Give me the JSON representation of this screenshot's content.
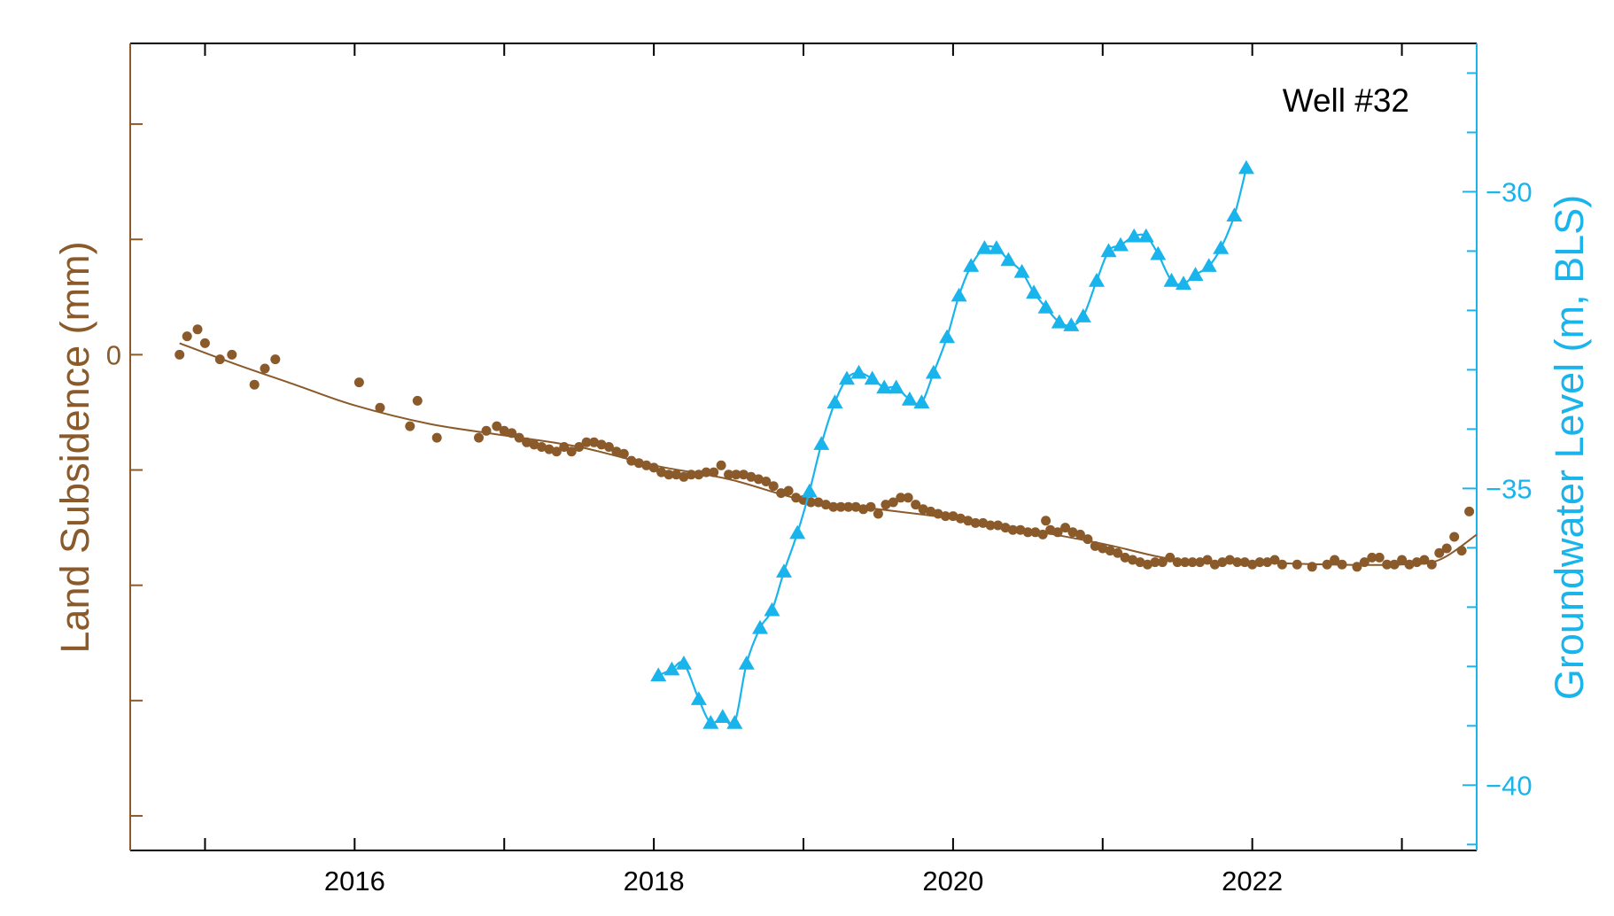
{
  "colors": {
    "subsidence": "#8a5a2b",
    "groundwater": "#19b4ec",
    "frame": "#000000"
  },
  "chart_data": {
    "type": "line",
    "annotation": "Well #32",
    "xlabel": "",
    "x_ticks": [
      "2016",
      "2018",
      "2020",
      "2022"
    ],
    "xlim": [
      2014.5,
      2023.5
    ],
    "grid": false,
    "legend": "none",
    "left_axis": {
      "label": "Land Subsidence (mm)",
      "ylim": [
        -21.5,
        13.5
      ],
      "tick_values": [
        -20,
        -15,
        -10,
        -5,
        0,
        5,
        10
      ],
      "tick_labels": [
        {
          "value": 0,
          "text": "0"
        }
      ]
    },
    "right_axis": {
      "label": "Groundwater Level (m, BLS)",
      "ylim": [
        -41.1,
        -27.5
      ],
      "major_tick_values": [
        -40,
        -35,
        -30
      ],
      "tick_labels": [
        {
          "value": -30,
          "text": "−30"
        },
        {
          "value": -35,
          "text": "−35"
        },
        {
          "value": -40,
          "text": "−40"
        }
      ],
      "minor_step": 1
    },
    "series": [
      {
        "axis": "left",
        "marker": "circle",
        "points": [
          [
            2014.83,
            0.0
          ],
          [
            2014.88,
            0.8
          ],
          [
            2014.95,
            1.1
          ],
          [
            2015.0,
            0.5
          ],
          [
            2015.1,
            -0.2
          ],
          [
            2015.18,
            0.0
          ],
          [
            2015.33,
            -1.3
          ],
          [
            2015.4,
            -0.6
          ],
          [
            2015.47,
            -0.2
          ],
          [
            2016.03,
            -1.2
          ],
          [
            2016.17,
            -2.3
          ],
          [
            2016.37,
            -3.1
          ],
          [
            2016.42,
            -2.0
          ],
          [
            2016.55,
            -3.6
          ],
          [
            2016.83,
            -3.6
          ],
          [
            2016.88,
            -3.3
          ],
          [
            2016.95,
            -3.1
          ],
          [
            2017.0,
            -3.3
          ],
          [
            2017.05,
            -3.4
          ],
          [
            2017.1,
            -3.6
          ],
          [
            2017.15,
            -3.8
          ],
          [
            2017.2,
            -3.9
          ],
          [
            2017.25,
            -4.0
          ],
          [
            2017.3,
            -4.1
          ],
          [
            2017.35,
            -4.2
          ],
          [
            2017.4,
            -4.0
          ],
          [
            2017.45,
            -4.2
          ],
          [
            2017.5,
            -4.0
          ],
          [
            2017.55,
            -3.8
          ],
          [
            2017.6,
            -3.8
          ],
          [
            2017.65,
            -3.9
          ],
          [
            2017.7,
            -4.0
          ],
          [
            2017.75,
            -4.2
          ],
          [
            2017.8,
            -4.3
          ],
          [
            2017.85,
            -4.6
          ],
          [
            2017.9,
            -4.7
          ],
          [
            2017.95,
            -4.8
          ],
          [
            2018.0,
            -4.9
          ],
          [
            2018.05,
            -5.1
          ],
          [
            2018.1,
            -5.2
          ],
          [
            2018.15,
            -5.2
          ],
          [
            2018.2,
            -5.3
          ],
          [
            2018.25,
            -5.2
          ],
          [
            2018.3,
            -5.2
          ],
          [
            2018.35,
            -5.1
          ],
          [
            2018.4,
            -5.1
          ],
          [
            2018.45,
            -4.8
          ],
          [
            2018.5,
            -5.2
          ],
          [
            2018.55,
            -5.2
          ],
          [
            2018.6,
            -5.2
          ],
          [
            2018.65,
            -5.3
          ],
          [
            2018.7,
            -5.4
          ],
          [
            2018.75,
            -5.5
          ],
          [
            2018.8,
            -5.7
          ],
          [
            2018.85,
            -6.0
          ],
          [
            2018.9,
            -5.9
          ],
          [
            2018.95,
            -6.2
          ],
          [
            2019.0,
            -6.3
          ],
          [
            2019.05,
            -6.4
          ],
          [
            2019.1,
            -6.4
          ],
          [
            2019.15,
            -6.5
          ],
          [
            2019.2,
            -6.6
          ],
          [
            2019.25,
            -6.6
          ],
          [
            2019.3,
            -6.6
          ],
          [
            2019.35,
            -6.6
          ],
          [
            2019.4,
            -6.7
          ],
          [
            2019.45,
            -6.6
          ],
          [
            2019.5,
            -6.9
          ],
          [
            2019.55,
            -6.5
          ],
          [
            2019.6,
            -6.4
          ],
          [
            2019.65,
            -6.2
          ],
          [
            2019.7,
            -6.2
          ],
          [
            2019.75,
            -6.5
          ],
          [
            2019.8,
            -6.7
          ],
          [
            2019.85,
            -6.8
          ],
          [
            2019.9,
            -6.9
          ],
          [
            2019.95,
            -7.0
          ],
          [
            2020.0,
            -7.0
          ],
          [
            2020.05,
            -7.1
          ],
          [
            2020.1,
            -7.2
          ],
          [
            2020.15,
            -7.3
          ],
          [
            2020.2,
            -7.3
          ],
          [
            2020.25,
            -7.4
          ],
          [
            2020.3,
            -7.4
          ],
          [
            2020.35,
            -7.5
          ],
          [
            2020.4,
            -7.6
          ],
          [
            2020.45,
            -7.6
          ],
          [
            2020.5,
            -7.7
          ],
          [
            2020.55,
            -7.7
          ],
          [
            2020.6,
            -7.8
          ],
          [
            2020.62,
            -7.2
          ],
          [
            2020.65,
            -7.6
          ],
          [
            2020.7,
            -7.7
          ],
          [
            2020.75,
            -7.5
          ],
          [
            2020.8,
            -7.7
          ],
          [
            2020.85,
            -7.8
          ],
          [
            2020.9,
            -8.0
          ],
          [
            2020.95,
            -8.3
          ],
          [
            2021.0,
            -8.4
          ],
          [
            2021.05,
            -8.5
          ],
          [
            2021.1,
            -8.6
          ],
          [
            2021.15,
            -8.8
          ],
          [
            2021.2,
            -8.9
          ],
          [
            2021.25,
            -9.0
          ],
          [
            2021.3,
            -9.1
          ],
          [
            2021.35,
            -9.0
          ],
          [
            2021.4,
            -9.0
          ],
          [
            2021.45,
            -8.8
          ],
          [
            2021.5,
            -9.0
          ],
          [
            2021.55,
            -9.0
          ],
          [
            2021.6,
            -9.0
          ],
          [
            2021.65,
            -9.0
          ],
          [
            2021.7,
            -8.9
          ],
          [
            2021.75,
            -9.1
          ],
          [
            2021.8,
            -9.0
          ],
          [
            2021.85,
            -8.9
          ],
          [
            2021.9,
            -9.0
          ],
          [
            2021.95,
            -9.0
          ],
          [
            2022.0,
            -9.1
          ],
          [
            2022.05,
            -9.0
          ],
          [
            2022.1,
            -9.0
          ],
          [
            2022.15,
            -8.9
          ],
          [
            2022.2,
            -9.1
          ],
          [
            2022.3,
            -9.1
          ],
          [
            2022.4,
            -9.2
          ],
          [
            2022.5,
            -9.1
          ],
          [
            2022.55,
            -8.9
          ],
          [
            2022.6,
            -9.1
          ],
          [
            2022.7,
            -9.2
          ],
          [
            2022.75,
            -9.0
          ],
          [
            2022.8,
            -8.8
          ],
          [
            2022.85,
            -8.8
          ],
          [
            2022.9,
            -9.1
          ],
          [
            2022.95,
            -9.1
          ],
          [
            2023.0,
            -8.9
          ],
          [
            2023.05,
            -9.1
          ],
          [
            2023.1,
            -9.0
          ],
          [
            2023.15,
            -8.9
          ],
          [
            2023.2,
            -9.1
          ],
          [
            2023.25,
            -8.6
          ],
          [
            2023.3,
            -8.4
          ],
          [
            2023.35,
            -7.9
          ],
          [
            2023.4,
            -8.5
          ],
          [
            2023.45,
            -6.8
          ]
        ],
        "fit": [
          [
            2014.83,
            0.5
          ],
          [
            2015.2,
            -0.4
          ],
          [
            2015.6,
            -1.3
          ],
          [
            2016.0,
            -2.2
          ],
          [
            2016.5,
            -3.0
          ],
          [
            2017.0,
            -3.5
          ],
          [
            2017.5,
            -4.0
          ],
          [
            2018.0,
            -4.8
          ],
          [
            2018.5,
            -5.4
          ],
          [
            2019.0,
            -6.3
          ],
          [
            2019.5,
            -6.7
          ],
          [
            2020.0,
            -7.1
          ],
          [
            2020.5,
            -7.6
          ],
          [
            2021.0,
            -8.2
          ],
          [
            2021.5,
            -8.9
          ],
          [
            2022.0,
            -9.0
          ],
          [
            2022.5,
            -9.1
          ],
          [
            2023.0,
            -9.1
          ],
          [
            2023.25,
            -8.9
          ],
          [
            2023.5,
            -7.8
          ]
        ]
      },
      {
        "axis": "right",
        "marker": "triangle",
        "points": [
          [
            2018.03,
            -38.15
          ],
          [
            2018.12,
            -38.05
          ],
          [
            2018.2,
            -37.95
          ],
          [
            2018.3,
            -38.55
          ],
          [
            2018.38,
            -38.95
          ],
          [
            2018.46,
            -38.85
          ],
          [
            2018.54,
            -38.95
          ],
          [
            2018.62,
            -37.95
          ],
          [
            2018.71,
            -37.35
          ],
          [
            2018.79,
            -37.05
          ],
          [
            2018.87,
            -36.4
          ],
          [
            2018.96,
            -35.75
          ],
          [
            2019.04,
            -35.05
          ],
          [
            2019.12,
            -34.25
          ],
          [
            2019.21,
            -33.55
          ],
          [
            2019.29,
            -33.15
          ],
          [
            2019.37,
            -33.05
          ],
          [
            2019.46,
            -33.15
          ],
          [
            2019.54,
            -33.3
          ],
          [
            2019.62,
            -33.3
          ],
          [
            2019.71,
            -33.5
          ],
          [
            2019.79,
            -33.55
          ],
          [
            2019.87,
            -33.05
          ],
          [
            2019.96,
            -32.45
          ],
          [
            2020.04,
            -31.75
          ],
          [
            2020.12,
            -31.25
          ],
          [
            2020.21,
            -30.95
          ],
          [
            2020.29,
            -30.95
          ],
          [
            2020.37,
            -31.15
          ],
          [
            2020.46,
            -31.35
          ],
          [
            2020.54,
            -31.7
          ],
          [
            2020.62,
            -31.95
          ],
          [
            2020.71,
            -32.2
          ],
          [
            2020.79,
            -32.25
          ],
          [
            2020.87,
            -32.1
          ],
          [
            2020.96,
            -31.5
          ],
          [
            2021.04,
            -31.0
          ],
          [
            2021.12,
            -30.9
          ],
          [
            2021.21,
            -30.75
          ],
          [
            2021.29,
            -30.75
          ],
          [
            2021.37,
            -31.05
          ],
          [
            2021.46,
            -31.5
          ],
          [
            2021.54,
            -31.55
          ],
          [
            2021.62,
            -31.4
          ],
          [
            2021.71,
            -31.25
          ],
          [
            2021.79,
            -30.95
          ],
          [
            2021.88,
            -30.4
          ],
          [
            2021.96,
            -29.6
          ]
        ]
      }
    ]
  }
}
